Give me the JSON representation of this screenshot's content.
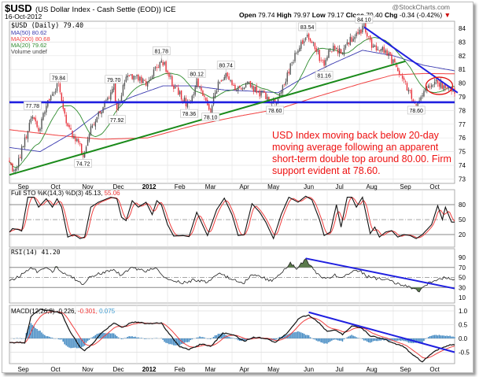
{
  "header": {
    "symbol": "$USD",
    "name": "(US Dollar Index - Cash Settle (EOD)) ICE",
    "date": "16-Oct-2012",
    "watermark": "@StockCharts.com",
    "open_label": "Open",
    "open": "79.74",
    "high_label": "High",
    "high": "79.97",
    "low_label": "Low",
    "low": "79.17",
    "close_label": "Close",
    "close": "79.40",
    "chg_label": "Chg",
    "chg": "-0.34 (-0.42%)",
    "chg_arrow": "▼"
  },
  "legend": {
    "price": "$USD (Daily) 79.40",
    "ma50": "MA(50) 80.62",
    "ma200": "MA(200) 80.68",
    "ma20": "MA(20) 79.62",
    "volume": "Volume undef"
  },
  "annotation": {
    "lines": [
      "USD Index moving back below 20-day",
      "moving average following an apparent",
      "short-term double top around 80.00.   Firm",
      "support evident at 78.60."
    ]
  },
  "colors": {
    "down": "#e8303a",
    "up": "#222222",
    "ma50": "#3b3bb0",
    "ma200": "#f04040",
    "ma20": "#2e8b2e",
    "trend_blue": "#1f1fe0",
    "trend_green": "#1a8a1a",
    "annot": "#ee1111",
    "hist": "#3d86c0",
    "rsi_fill": "#5a7a4a"
  },
  "chart_data": [
    {
      "type": "candlestick",
      "title": "$USD (Daily)",
      "x_unit": "trading day index (0 = late Aug 2011, 290 = 16-Oct-2012)",
      "ylim": [
        72.8,
        84.8
      ],
      "yticks": [
        73,
        74,
        75,
        76,
        77,
        78,
        79,
        80,
        81,
        82,
        83,
        84
      ],
      "months": [
        {
          "label": "Sep",
          "day": 9
        },
        {
          "label": "Oct",
          "day": 30
        },
        {
          "label": "Nov",
          "day": 51
        },
        {
          "label": "Dec",
          "day": 71
        },
        {
          "label": "2012",
          "day": 91,
          "bold": true
        },
        {
          "label": "Feb",
          "day": 111
        },
        {
          "label": "Mar",
          "day": 131
        },
        {
          "label": "Apr",
          "day": 153
        },
        {
          "label": "May",
          "day": 172
        },
        {
          "label": "Jun",
          "day": 195
        },
        {
          "label": "Jul",
          "day": 215
        },
        {
          "label": "Aug",
          "day": 236
        },
        {
          "label": "Sep",
          "day": 258
        },
        {
          "label": "Oct",
          "day": 277
        }
      ],
      "close_waypoints": [
        [
          0,
          74.0
        ],
        [
          4,
          73.6
        ],
        [
          15,
          77.78
        ],
        [
          19,
          76.5
        ],
        [
          25,
          78.7
        ],
        [
          32,
          79.84
        ],
        [
          36,
          77.6
        ],
        [
          41,
          76.2
        ],
        [
          45,
          75.8
        ],
        [
          48,
          74.72
        ],
        [
          54,
          77.0
        ],
        [
          61,
          78.3
        ],
        [
          68,
          79.7
        ],
        [
          70,
          77.92
        ],
        [
          76,
          80.6
        ],
        [
          84,
          80.3
        ],
        [
          91,
          80.0
        ],
        [
          96,
          81.2
        ],
        [
          99,
          81.78
        ],
        [
          107,
          79.8
        ],
        [
          113,
          78.8
        ],
        [
          117,
          78.36
        ],
        [
          122,
          80.12
        ],
        [
          127,
          78.8
        ],
        [
          131,
          78.1
        ],
        [
          136,
          80.0
        ],
        [
          141,
          80.74
        ],
        [
          148,
          79.5
        ],
        [
          155,
          79.9
        ],
        [
          163,
          79.2
        ],
        [
          173,
          78.6
        ],
        [
          178,
          79.8
        ],
        [
          186,
          82.0
        ],
        [
          194,
          83.54
        ],
        [
          199,
          82.6
        ],
        [
          205,
          81.16
        ],
        [
          209,
          82.6
        ],
        [
          217,
          82.3
        ],
        [
          222,
          83.2
        ],
        [
          231,
          84.1
        ],
        [
          237,
          82.6
        ],
        [
          245,
          82.4
        ],
        [
          250,
          81.5
        ],
        [
          255,
          80.6
        ],
        [
          261,
          79.2
        ],
        [
          265,
          78.6
        ],
        [
          271,
          79.6
        ],
        [
          278,
          80.0
        ],
        [
          284,
          79.8
        ],
        [
          290,
          79.4
        ]
      ],
      "ma50_waypoints": [
        [
          0,
          75.3
        ],
        [
          20,
          75.0
        ],
        [
          40,
          76.3
        ],
        [
          60,
          78.0
        ],
        [
          80,
          79.0
        ],
        [
          100,
          79.8
        ],
        [
          120,
          79.8
        ],
        [
          140,
          79.5
        ],
        [
          160,
          79.4
        ],
        [
          175,
          79.3
        ],
        [
          190,
          80.3
        ],
        [
          210,
          81.4
        ],
        [
          230,
          82.4
        ],
        [
          250,
          82.0
        ],
        [
          270,
          81.3
        ],
        [
          290,
          80.9
        ]
      ],
      "ma200_waypoints": [
        [
          0,
          76.6
        ],
        [
          30,
          76.2
        ],
        [
          60,
          75.9
        ],
        [
          90,
          76.0
        ],
        [
          120,
          76.9
        ],
        [
          150,
          77.6
        ],
        [
          175,
          78.1
        ],
        [
          200,
          79.0
        ],
        [
          230,
          80.0
        ],
        [
          250,
          80.6
        ],
        [
          270,
          80.7
        ],
        [
          290,
          80.68
        ]
      ],
      "ma20": "SMA(20) of close",
      "peak_labels": [
        {
          "text": "77.78",
          "day": 15,
          "value": 77.78,
          "pos": "above"
        },
        {
          "text": "79.84",
          "day": 32,
          "value": 79.84,
          "pos": "above"
        },
        {
          "text": "74.72",
          "day": 48,
          "value": 74.72,
          "pos": "below"
        },
        {
          "text": "79.70",
          "day": 68,
          "value": 79.7,
          "pos": "above"
        },
        {
          "text": "77.92",
          "day": 70,
          "value": 77.92,
          "pos": "below"
        },
        {
          "text": "81.78",
          "day": 99,
          "value": 81.78,
          "pos": "above"
        },
        {
          "text": "78.36",
          "day": 117,
          "value": 78.36,
          "pos": "below"
        },
        {
          "text": "80.12",
          "day": 122,
          "value": 80.12,
          "pos": "above"
        },
        {
          "text": "78.10",
          "day": 131,
          "value": 78.1,
          "pos": "below"
        },
        {
          "text": "80.74",
          "day": 141,
          "value": 80.74,
          "pos": "above"
        },
        {
          "text": "78.60",
          "day": 173,
          "value": 78.6,
          "pos": "below"
        },
        {
          "text": "83.54",
          "day": 194,
          "value": 83.54,
          "pos": "above"
        },
        {
          "text": "81.16",
          "day": 205,
          "value": 81.16,
          "pos": "below"
        },
        {
          "text": "84.10",
          "day": 231,
          "value": 84.1,
          "pos": "above"
        },
        {
          "text": "78.60",
          "day": 265,
          "value": 78.6,
          "pos": "below"
        }
      ],
      "trendlines": [
        {
          "name": "support-78-60",
          "color": "blue",
          "points": [
            [
              0,
              78.6
            ],
            [
              290,
              78.6
            ]
          ]
        },
        {
          "name": "uptrend",
          "color": "green",
          "points": [
            [
              0,
              73.3
            ],
            [
              258,
              81.6
            ]
          ]
        },
        {
          "name": "downtrend",
          "color": "blue",
          "points": [
            [
              231,
              84.1
            ],
            [
              292,
              79.3
            ]
          ]
        }
      ],
      "highlight_ellipse": {
        "day": 280,
        "value": 79.8
      }
    },
    {
      "type": "line",
      "title": "Full STO %K(14,3) %D(3)",
      "k_value": "45.13",
      "d_value": "55.06",
      "label": "Full STO %K(14,3) %D(3) 45.13,",
      "ylim": [
        0,
        100
      ],
      "yticks": [
        20,
        50,
        80
      ],
      "k_waypoints": [
        [
          0,
          25
        ],
        [
          2,
          32
        ],
        [
          6,
          30
        ],
        [
          8,
          27
        ],
        [
          12,
          95
        ],
        [
          16,
          95
        ],
        [
          19,
          75
        ],
        [
          24,
          92
        ],
        [
          28,
          75
        ],
        [
          31,
          92
        ],
        [
          34,
          75
        ],
        [
          38,
          15
        ],
        [
          42,
          20
        ],
        [
          46,
          12
        ],
        [
          49,
          15
        ],
        [
          53,
          75
        ],
        [
          58,
          85
        ],
        [
          62,
          90
        ],
        [
          66,
          95
        ],
        [
          70,
          92
        ],
        [
          73,
          55
        ],
        [
          76,
          48
        ],
        [
          80,
          88
        ],
        [
          84,
          75
        ],
        [
          89,
          85
        ],
        [
          93,
          60
        ],
        [
          96,
          88
        ],
        [
          99,
          80
        ],
        [
          103,
          40
        ],
        [
          107,
          17
        ],
        [
          113,
          18
        ],
        [
          117,
          16
        ],
        [
          122,
          65
        ],
        [
          125,
          45
        ],
        [
          129,
          18
        ],
        [
          135,
          70
        ],
        [
          140,
          93
        ],
        [
          145,
          60
        ],
        [
          149,
          18
        ],
        [
          153,
          20
        ],
        [
          158,
          82
        ],
        [
          163,
          65
        ],
        [
          167,
          45
        ],
        [
          172,
          12
        ],
        [
          177,
          60
        ],
        [
          182,
          95
        ],
        [
          188,
          85
        ],
        [
          193,
          97
        ],
        [
          197,
          90
        ],
        [
          202,
          50
        ],
        [
          205,
          18
        ],
        [
          209,
          25
        ],
        [
          213,
          80
        ],
        [
          216,
          35
        ],
        [
          220,
          95
        ],
        [
          223,
          95
        ],
        [
          226,
          75
        ],
        [
          230,
          95
        ],
        [
          235,
          22
        ],
        [
          238,
          35
        ],
        [
          241,
          15
        ],
        [
          245,
          25
        ],
        [
          249,
          28
        ],
        [
          253,
          15
        ],
        [
          257,
          20
        ],
        [
          261,
          18
        ],
        [
          265,
          12
        ],
        [
          269,
          20
        ],
        [
          275,
          40
        ],
        [
          279,
          78
        ],
        [
          282,
          50
        ],
        [
          284,
          75
        ],
        [
          288,
          45
        ]
      ]
    },
    {
      "type": "line",
      "title": "RSI(14)",
      "value": "41.20",
      "label": "RSI(14) 41.20",
      "ylim": [
        0,
        100
      ],
      "yticks": [
        10,
        30,
        50,
        70,
        90
      ],
      "waypoints": [
        [
          0,
          45
        ],
        [
          4,
          48
        ],
        [
          10,
          60
        ],
        [
          14,
          72
        ],
        [
          18,
          62
        ],
        [
          24,
          72
        ],
        [
          28,
          62
        ],
        [
          31,
          72
        ],
        [
          34,
          58
        ],
        [
          40,
          52
        ],
        [
          48,
          35
        ],
        [
          52,
          52
        ],
        [
          60,
          58
        ],
        [
          68,
          68
        ],
        [
          72,
          55
        ],
        [
          80,
          70
        ],
        [
          88,
          62
        ],
        [
          95,
          68
        ],
        [
          103,
          45
        ],
        [
          113,
          40
        ],
        [
          121,
          45
        ],
        [
          129,
          40
        ],
        [
          137,
          58
        ],
        [
          141,
          52
        ],
        [
          145,
          45
        ],
        [
          153,
          40
        ],
        [
          157,
          55
        ],
        [
          165,
          50
        ],
        [
          171,
          42
        ],
        [
          177,
          60
        ],
        [
          183,
          78
        ],
        [
          187,
          68
        ],
        [
          193,
          85
        ],
        [
          197,
          72
        ],
        [
          201,
          55
        ],
        [
          207,
          48
        ],
        [
          211,
          55
        ],
        [
          217,
          50
        ],
        [
          223,
          62
        ],
        [
          229,
          62
        ],
        [
          233,
          52
        ],
        [
          239,
          48
        ],
        [
          245,
          45
        ],
        [
          253,
          38
        ],
        [
          261,
          30
        ],
        [
          267,
          22
        ],
        [
          273,
          38
        ],
        [
          279,
          45
        ],
        [
          284,
          50
        ],
        [
          288,
          45
        ]
      ],
      "trendline": [
        [
          193,
          88
        ],
        [
          290,
          28
        ]
      ]
    },
    {
      "type": "line+histogram",
      "title": "MACD(12,26,9)",
      "macd": "-0.226",
      "signal": "-0.301",
      "hist": "0.075",
      "label": "MACD(12,26,9) -0.226,",
      "ylim": [
        -0.85,
        1.2
      ],
      "yticks": [
        -0.5,
        0.0,
        0.5,
        1.0
      ],
      "ytick_labels": [
        "-0.5",
        "0.0",
        "0.5",
        "1.0"
      ],
      "macd_waypoints": [
        [
          0,
          -0.15
        ],
        [
          10,
          -0.15
        ],
        [
          14,
          0.8
        ],
        [
          20,
          1.05
        ],
        [
          28,
          1.0
        ],
        [
          34,
          0.9
        ],
        [
          40,
          0.2
        ],
        [
          46,
          -0.3
        ],
        [
          49,
          -0.45
        ],
        [
          54,
          -0.2
        ],
        [
          60,
          0.2
        ],
        [
          68,
          0.55
        ],
        [
          74,
          0.4
        ],
        [
          80,
          0.6
        ],
        [
          89,
          0.55
        ],
        [
          99,
          0.55
        ],
        [
          105,
          0.1
        ],
        [
          111,
          -0.3
        ],
        [
          117,
          -0.4
        ],
        [
          125,
          -0.2
        ],
        [
          131,
          -0.3
        ],
        [
          139,
          0.2
        ],
        [
          147,
          0.1
        ],
        [
          153,
          -0.1
        ],
        [
          159,
          0.05
        ],
        [
          167,
          0.0
        ],
        [
          173,
          -0.15
        ],
        [
          181,
          0.2
        ],
        [
          189,
          0.75
        ],
        [
          195,
          0.85
        ],
        [
          201,
          0.6
        ],
        [
          207,
          0.25
        ],
        [
          213,
          0.3
        ],
        [
          217,
          0.15
        ],
        [
          223,
          0.45
        ],
        [
          229,
          0.4
        ],
        [
          235,
          0.1
        ],
        [
          243,
          0.0
        ],
        [
          249,
          -0.15
        ],
        [
          257,
          -0.3
        ],
        [
          263,
          -0.6
        ],
        [
          269,
          -0.85
        ],
        [
          275,
          -0.55
        ],
        [
          281,
          -0.35
        ],
        [
          288,
          -0.226
        ]
      ],
      "trendline": [
        [
          195,
          0.95
        ],
        [
          290,
          -0.5
        ]
      ]
    }
  ]
}
